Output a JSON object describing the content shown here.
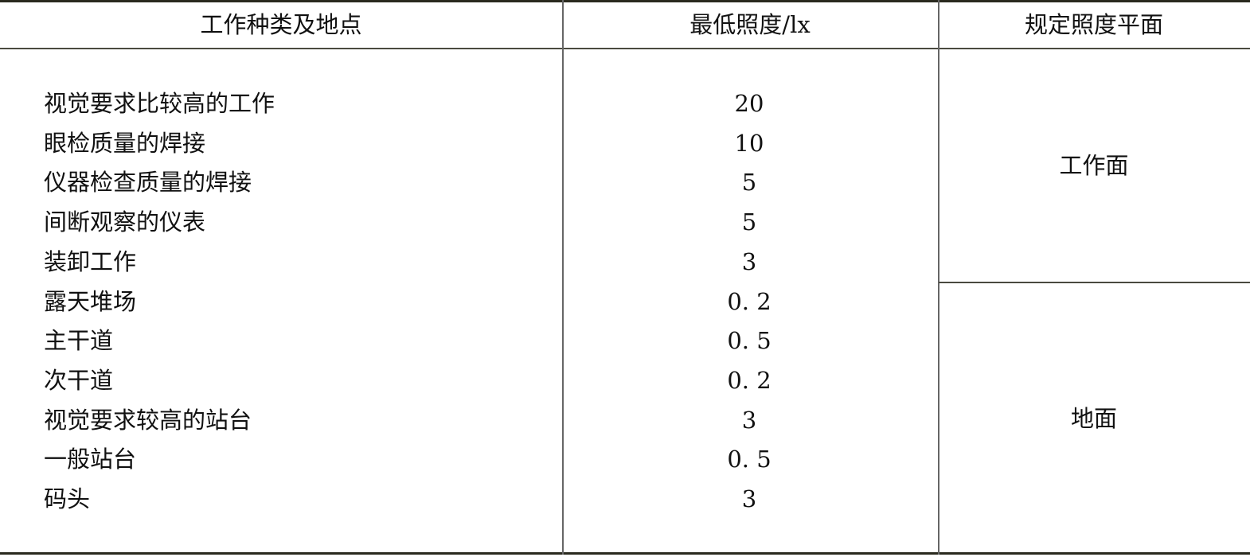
{
  "headers": [
    "工作种类及地点",
    "最低照度/lx",
    "规定照度平面"
  ],
  "rows": [
    {
      "item": "视觉要求比较高的工作",
      "lux": "20"
    },
    {
      "item": "眼检质量的焊接",
      "lux": "10"
    },
    {
      "item": "仪器检查质量的焊接",
      "lux": "5"
    },
    {
      "item": "间断观察的仪表",
      "lux": "5"
    },
    {
      "item": "装卸工作",
      "lux": "3"
    },
    {
      "item": "露天堆场",
      "lux": "0. 2"
    },
    {
      "item": "主干道",
      "lux": "0. 5"
    },
    {
      "item": "次干道",
      "lux": "0. 2"
    },
    {
      "item": "视觉要求较高的站台",
      "lux": "3"
    },
    {
      "item": "一般站台",
      "lux": "0. 5"
    },
    {
      "item": "码头",
      "lux": "3"
    }
  ],
  "planes": [
    "工作面",
    "地面"
  ]
}
